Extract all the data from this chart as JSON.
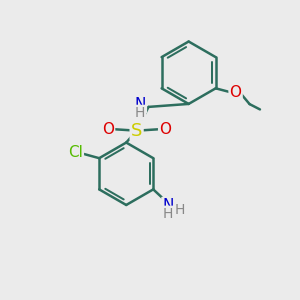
{
  "bg_color": "#ebebeb",
  "bond_color": "#2d6e5e",
  "bond_width": 1.8,
  "atom_colors": {
    "S": "#cccc00",
    "O": "#dd0000",
    "N": "#0000cc",
    "Cl": "#55bb00",
    "C": "#2d6e5e",
    "H": "#888888"
  },
  "font_size_atom": 11,
  "font_size_small": 9
}
